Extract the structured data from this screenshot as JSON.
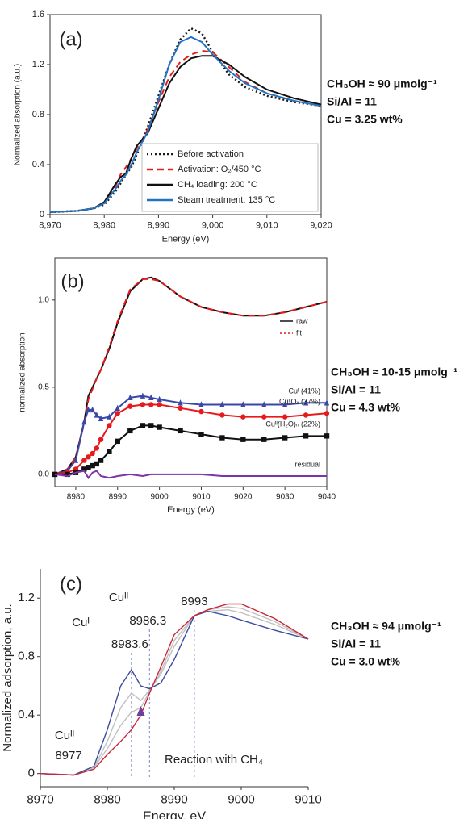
{
  "chart_data": [
    {
      "type": "line",
      "panel": "(a)",
      "ylabel": "Normalized absorption (a.u.)",
      "xlabel": "Energy (eV)",
      "frame": "box",
      "legend": "lower right",
      "x": [
        8970,
        8975,
        8978,
        8980,
        8982,
        8983,
        8984,
        8985,
        8986,
        8987,
        8988,
        8990,
        8992,
        8994,
        8996,
        8998,
        9000,
        9003,
        9006,
        9010,
        9015,
        9020
      ],
      "xlim": [
        8970,
        9020
      ],
      "xticks": [
        {
          "value": 8970,
          "label": "8,970"
        },
        {
          "value": 8980,
          "label": "8,980"
        },
        {
          "value": 8990,
          "label": "8,990"
        },
        {
          "value": 9000,
          "label": "9,000"
        },
        {
          "value": 9010,
          "label": "9,010"
        },
        {
          "value": 9020,
          "label": "9,020"
        }
      ],
      "ylim": [
        0,
        1.6
      ],
      "yticks": [
        0,
        0.4,
        0.8,
        1.2,
        1.6
      ],
      "series": [
        {
          "name": "Before activation",
          "color": "#1a1a1a",
          "dash": "dotted",
          "values": [
            0.02,
            0.03,
            0.05,
            0.08,
            0.18,
            0.25,
            0.32,
            0.38,
            0.48,
            0.58,
            0.7,
            0.95,
            1.2,
            1.4,
            1.49,
            1.45,
            1.3,
            1.12,
            1.02,
            0.95,
            0.9,
            0.87
          ]
        },
        {
          "name": "Activation: O₂/450 °C",
          "color": "#e0201b",
          "dash": "dashed",
          "values": [
            0.02,
            0.03,
            0.05,
            0.1,
            0.22,
            0.32,
            0.38,
            0.45,
            0.53,
            0.6,
            0.68,
            0.9,
            1.1,
            1.22,
            1.28,
            1.31,
            1.3,
            1.18,
            1.06,
            0.97,
            0.91,
            0.87
          ]
        },
        {
          "name": "CH₄ loading: 200 °C",
          "color": "#111111",
          "dash": "solid",
          "values": [
            0.02,
            0.03,
            0.05,
            0.1,
            0.24,
            0.3,
            0.33,
            0.45,
            0.55,
            0.6,
            0.65,
            0.85,
            1.05,
            1.18,
            1.25,
            1.27,
            1.27,
            1.2,
            1.1,
            1.0,
            0.93,
            0.88
          ]
        },
        {
          "name": "Steam treatment: 135 °C",
          "color": "#2473c2",
          "dash": "solid",
          "values": [
            0.02,
            0.03,
            0.05,
            0.09,
            0.2,
            0.27,
            0.32,
            0.4,
            0.5,
            0.58,
            0.66,
            0.92,
            1.2,
            1.38,
            1.42,
            1.38,
            1.28,
            1.15,
            1.05,
            0.97,
            0.91,
            0.87
          ]
        }
      ],
      "notes": [
        "CH₃OH ≈ 90 μmolg⁻¹",
        "Si/Al = 11",
        "Cu = 3.25 wt%"
      ]
    },
    {
      "type": "line",
      "panel": "(b)",
      "ylabel": "normalized absorption",
      "xlabel": "Energy (eV)",
      "frame": "box",
      "legend": "upper right",
      "x": [
        8975,
        8978,
        8980,
        8982,
        8983,
        8984,
        8985,
        8986,
        8988,
        8990,
        8993,
        8996,
        8998,
        9000,
        9005,
        9010,
        9015,
        9020,
        9025,
        9030,
        9035,
        9040
      ],
      "xlim": [
        8975,
        9040
      ],
      "xticks": [
        8980,
        8990,
        9000,
        9010,
        9020,
        9030,
        9040
      ],
      "ylim": [
        -0.07,
        1.24
      ],
      "yticks": [
        {
          "value": 0,
          "label": "0.0"
        },
        0.5,
        {
          "value": 1,
          "label": "1.0"
        }
      ],
      "series": [
        {
          "name": "raw",
          "color": "#111111",
          "dash": "solid",
          "in_legend": true,
          "values": [
            0.0,
            0.03,
            0.1,
            0.3,
            0.45,
            0.5,
            0.55,
            0.6,
            0.72,
            0.87,
            1.05,
            1.12,
            1.13,
            1.11,
            1.02,
            0.96,
            0.93,
            0.91,
            0.91,
            0.93,
            0.96,
            0.99
          ]
        },
        {
          "name": "fit",
          "color": "#e8191c",
          "dash": "dashed",
          "in_legend": true,
          "values": [
            0.0,
            0.03,
            0.1,
            0.29,
            0.43,
            0.49,
            0.55,
            0.6,
            0.73,
            0.88,
            1.06,
            1.12,
            1.12,
            1.11,
            1.02,
            0.96,
            0.93,
            0.91,
            0.91,
            0.93,
            0.96,
            0.99
          ]
        },
        {
          "name": "Cuᴵ (41%)",
          "color": "#3a47a8",
          "dash": "solid",
          "marker": "triangle",
          "values": [
            0.0,
            0.02,
            0.08,
            0.3,
            0.37,
            0.37,
            0.34,
            0.32,
            0.33,
            0.38,
            0.44,
            0.45,
            0.44,
            0.43,
            0.41,
            0.4,
            0.4,
            0.4,
            0.4,
            0.4,
            0.41,
            0.41
          ]
        },
        {
          "name": "CuᴵᴵOₓ (37%)",
          "color": "#e8191c",
          "dash": "solid",
          "marker": "circle",
          "values": [
            0.0,
            0.01,
            0.03,
            0.08,
            0.1,
            0.12,
            0.15,
            0.2,
            0.28,
            0.35,
            0.39,
            0.4,
            0.4,
            0.4,
            0.38,
            0.36,
            0.34,
            0.33,
            0.33,
            0.33,
            0.34,
            0.35
          ]
        },
        {
          "name": "Cuᴵᴵ(H₂O)ₙ (22%)",
          "color": "#111111",
          "dash": "solid",
          "marker": "square",
          "values": [
            0.0,
            0.0,
            0.01,
            0.03,
            0.04,
            0.05,
            0.06,
            0.08,
            0.13,
            0.19,
            0.25,
            0.28,
            0.28,
            0.27,
            0.25,
            0.23,
            0.21,
            0.2,
            0.2,
            0.21,
            0.22,
            0.22
          ]
        },
        {
          "name": "residual",
          "color": "#7b35a8",
          "dash": "solid",
          "values": [
            0.0,
            -0.01,
            0.01,
            0.02,
            -0.02,
            0.01,
            0.02,
            -0.01,
            -0.02,
            -0.01,
            0.0,
            -0.01,
            0.0,
            0.0,
            0.0,
            0.0,
            -0.01,
            -0.01,
            -0.01,
            -0.01,
            -0.01,
            -0.01
          ]
        }
      ],
      "notes": [
        "CH₃OH ≈ 10-15 μmolg⁻¹",
        "Si/Al = 11",
        "Cu = 4.3 wt%"
      ]
    },
    {
      "type": "line",
      "panel": "(c)",
      "ylabel": "Normalized adsorption, a.u.",
      "xlabel": "Energy, eV",
      "frame": "axes",
      "x": [
        8970,
        8975,
        8978,
        8980,
        8982,
        8983.6,
        8985,
        8986.3,
        8988,
        8990,
        8993,
        8995,
        8998,
        9000,
        9005,
        9010
      ],
      "xlim": [
        8970,
        9010
      ],
      "xticks": [
        8970,
        8980,
        8990,
        9000,
        9010
      ],
      "ylim": [
        -0.09,
        1.4
      ],
      "yticks": [
        0,
        0.4,
        0.8,
        1.2
      ],
      "series": [
        {
          "color": "#c0c0c0",
          "dash": "solid",
          "values": [
            0.0,
            -0.01,
            0.04,
            0.22,
            0.45,
            0.55,
            0.5,
            0.57,
            0.68,
            0.87,
            1.08,
            1.11,
            1.12,
            1.1,
            1.02,
            0.92
          ]
        },
        {
          "color": "#c0c0c0",
          "dash": "solid",
          "values": [
            0.0,
            -0.01,
            0.04,
            0.17,
            0.33,
            0.42,
            0.45,
            0.56,
            0.7,
            0.91,
            1.08,
            1.12,
            1.14,
            1.13,
            1.04,
            0.92
          ]
        },
        {
          "color": "#3b4ba0",
          "dash": "solid",
          "values": [
            0.0,
            -0.01,
            0.05,
            0.3,
            0.6,
            0.71,
            0.6,
            0.58,
            0.62,
            0.78,
            1.08,
            1.11,
            1.08,
            1.05,
            0.98,
            0.92
          ]
        },
        {
          "color": "#c8283a",
          "dash": "solid",
          "values": [
            0.0,
            -0.01,
            0.03,
            0.13,
            0.22,
            0.3,
            0.4,
            0.55,
            0.73,
            0.95,
            1.08,
            1.12,
            1.16,
            1.16,
            1.06,
            0.92
          ]
        }
      ],
      "vlines": [
        8983.6,
        8986.3,
        8993
      ],
      "annotations": [
        "Cuᴵ",
        "Cuᴵᴵ",
        "Cuᴵᴵ",
        "8977",
        "Reaction with CH₄"
      ],
      "notes": [
        "CH₃OH ≈ 94 μmolg⁻¹",
        "Si/Al = 11",
        "Cu = 3.0 wt%"
      ]
    }
  ]
}
